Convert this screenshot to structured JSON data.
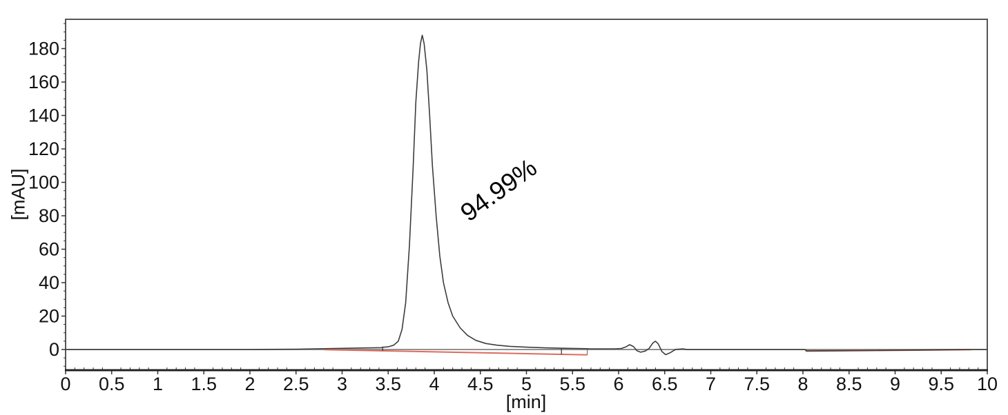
{
  "chart_data": {
    "type": "line",
    "title": "",
    "xlabel": "[min]",
    "ylabel": "[mAU]",
    "xlim": [
      0,
      10
    ],
    "ylim": [
      -12.4,
      197.5
    ],
    "grid": "off",
    "legend": "none",
    "colors": {
      "trace": "#3c3c3c",
      "integration_baseline": "#dd6a5c",
      "zero_line": "#909090",
      "plot_border": "#555555",
      "bottom_axis": "#222222",
      "tick": "#333333",
      "tick_label": "#111111"
    },
    "x_ticks": {
      "values": [
        0,
        0.5,
        1,
        1.5,
        2,
        2.5,
        3,
        3.5,
        4,
        4.5,
        5,
        5.5,
        6,
        6.5,
        7,
        7.5,
        8,
        8.5,
        9,
        9.5,
        10
      ],
      "labels": [
        "0",
        "0.5",
        "1",
        "1.5",
        "2",
        "2.5",
        "3",
        "3.5",
        "4",
        "4.5",
        "5",
        "5.5",
        "6",
        "6.5",
        "7",
        "7.5",
        "8",
        "8.5",
        "9",
        "9.5",
        "10"
      ],
      "minor_step": 0.1
    },
    "y_ticks": {
      "values": [
        0,
        20,
        40,
        60,
        80,
        100,
        120,
        140,
        160,
        180
      ],
      "labels": [
        "0",
        "20",
        "40",
        "60",
        "80",
        "100",
        "120",
        "140",
        "160",
        "180"
      ],
      "minor_step": 5
    },
    "annotation": {
      "text": "94.99%",
      "rotation_deg": -36,
      "refers_to": "main-peak-area-percent"
    },
    "main_peak": {
      "retention_min": 3.87,
      "height_mAU": 188,
      "area_percent": "94.99"
    },
    "series": [
      {
        "name": "detector-signal",
        "points": [
          [
            0,
            0
          ],
          [
            1.0,
            0
          ],
          [
            2.0,
            0
          ],
          [
            2.5,
            0.2
          ],
          [
            2.9,
            0.6
          ],
          [
            3.2,
            0.9
          ],
          [
            3.43,
            1.1
          ],
          [
            3.44,
            1.3
          ],
          [
            3.5,
            1.6
          ],
          [
            3.56,
            2.6
          ],
          [
            3.61,
            5
          ],
          [
            3.65,
            12
          ],
          [
            3.69,
            28
          ],
          [
            3.73,
            62
          ],
          [
            3.77,
            108
          ],
          [
            3.8,
            148
          ],
          [
            3.83,
            172
          ],
          [
            3.85,
            183
          ],
          [
            3.87,
            188
          ],
          [
            3.89,
            183
          ],
          [
            3.92,
            167
          ],
          [
            3.95,
            140
          ],
          [
            3.98,
            110
          ],
          [
            4.02,
            80
          ],
          [
            4.06,
            56
          ],
          [
            4.1,
            40
          ],
          [
            4.15,
            28
          ],
          [
            4.2,
            20
          ],
          [
            4.28,
            13
          ],
          [
            4.36,
            8.5
          ],
          [
            4.45,
            5.5
          ],
          [
            4.56,
            3.6
          ],
          [
            4.68,
            2.6
          ],
          [
            4.82,
            1.9
          ],
          [
            5.0,
            1.4
          ],
          [
            5.2,
            1.0
          ],
          [
            5.45,
            0.7
          ],
          [
            5.66,
            0.5
          ],
          [
            5.68,
            0.4
          ],
          [
            5.95,
            0.4
          ],
          [
            6.03,
            0.6
          ],
          [
            6.08,
            1.6
          ],
          [
            6.12,
            2.9
          ],
          [
            6.16,
            1.8
          ],
          [
            6.2,
            -0.8
          ],
          [
            6.24,
            -1.6
          ],
          [
            6.29,
            -0.9
          ],
          [
            6.33,
            0.6
          ],
          [
            6.37,
            3.8
          ],
          [
            6.4,
            5.0
          ],
          [
            6.43,
            3.4
          ],
          [
            6.47,
            -1.2
          ],
          [
            6.51,
            -3.1
          ],
          [
            6.56,
            -1.9
          ],
          [
            6.62,
            0.1
          ],
          [
            6.7,
            0.4
          ],
          [
            6.74,
            0
          ],
          [
            7.5,
            0
          ],
          [
            8.02,
            0
          ],
          [
            8.04,
            -0.8
          ],
          [
            8.6,
            -0.6
          ],
          [
            9.2,
            -0.35
          ],
          [
            9.83,
            0
          ],
          [
            10,
            0
          ]
        ]
      }
    ],
    "baselines": [
      {
        "from": [
          2.81,
          -0.1
        ],
        "to": [
          5.66,
          -3.2
        ]
      },
      {
        "from": [
          8.03,
          -1.0
        ],
        "to": [
          9.83,
          -0.1
        ]
      }
    ],
    "integration_marks": [
      {
        "x": 3.44,
        "v1": 1.8,
        "v2": -0.8,
        "color": "#3c3c3c"
      },
      {
        "x": 5.38,
        "v1": 0.6,
        "v2": -2.9,
        "color": "#3c3c3c"
      },
      {
        "x": 5.66,
        "v1": 0.4,
        "v2": -3.2,
        "color": "#777777"
      },
      {
        "x": 8.03,
        "v1": 0.0,
        "v2": -1.0,
        "color": "#777777"
      }
    ]
  }
}
